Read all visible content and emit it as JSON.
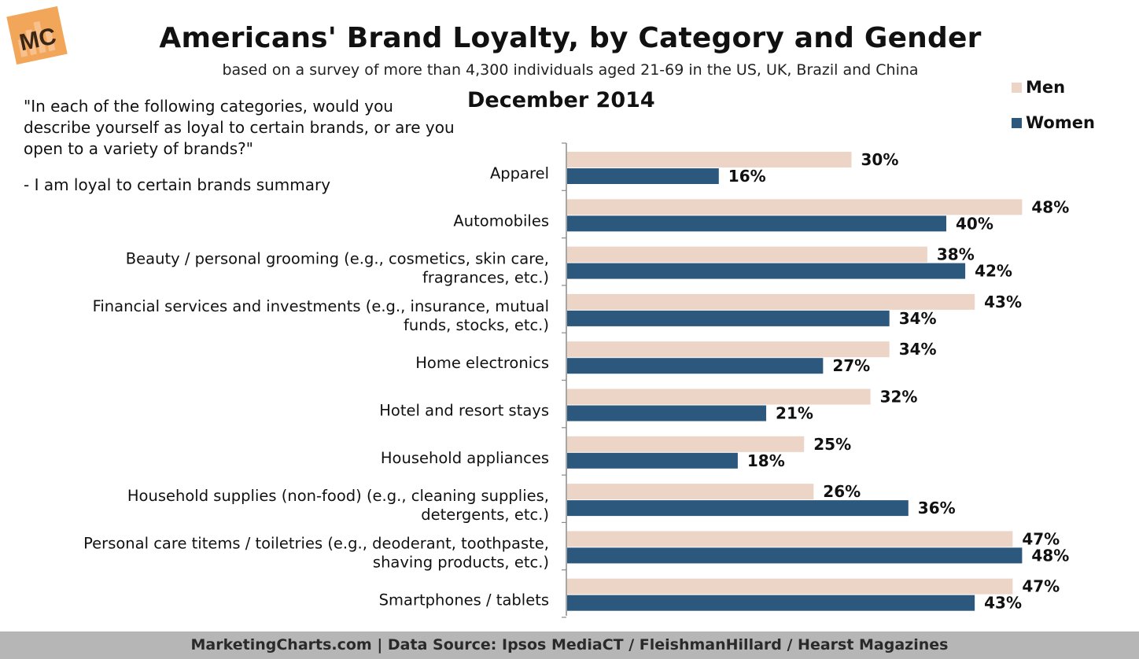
{
  "logo": {
    "text": "MC"
  },
  "colors": {
    "men": "#ecd5c6",
    "women": "#2c587e",
    "axis": "#8a8a8a"
  },
  "question": {
    "text": "\"In each of the following categories, would you describe yourself as loyal to certain brands, or are you open to a variety of brands?\"",
    "note": "- I am loyal to certain brands summary"
  },
  "footer": {
    "text": "MarketingCharts.com | Data Source: Ipsos MediaCT / FleishmanHillard / Hearst Magazines"
  },
  "chart_data": {
    "type": "bar",
    "orientation": "horizontal",
    "title": "Americans' Brand Loyalty, by Category and Gender",
    "subtitle": "based on a survey of more than 4,300 individuals aged 21-69 in the US, UK, Brazil and China",
    "date_label": "December 2014",
    "legend_position": "top-right",
    "categories": [
      [
        "Apparel"
      ],
      [
        "Automobiles"
      ],
      [
        "Beauty / personal grooming (e.g., cosmetics, skin care,",
        "fragrances, etc.)"
      ],
      [
        "Financial services and investments (e.g., insurance, mutual",
        "funds, stocks, etc.)"
      ],
      [
        "Home electronics"
      ],
      [
        "Hotel and resort stays"
      ],
      [
        "Household appliances"
      ],
      [
        "Household supplies (non-food) (e.g., cleaning supplies,",
        "detergents, etc.)"
      ],
      [
        "Personal care titems / toiletries (e.g., deoderant, toothpaste,",
        "shaving products, etc.)"
      ],
      [
        "Smartphones / tablets"
      ]
    ],
    "series": [
      {
        "name": "Men",
        "values": [
          30,
          48,
          38,
          43,
          34,
          32,
          25,
          26,
          47,
          47
        ]
      },
      {
        "name": "Women",
        "values": [
          16,
          40,
          42,
          34,
          27,
          21,
          18,
          36,
          48,
          43
        ]
      }
    ],
    "value_suffix": "%",
    "xlim": [
      0,
      60
    ],
    "grid": false
  }
}
